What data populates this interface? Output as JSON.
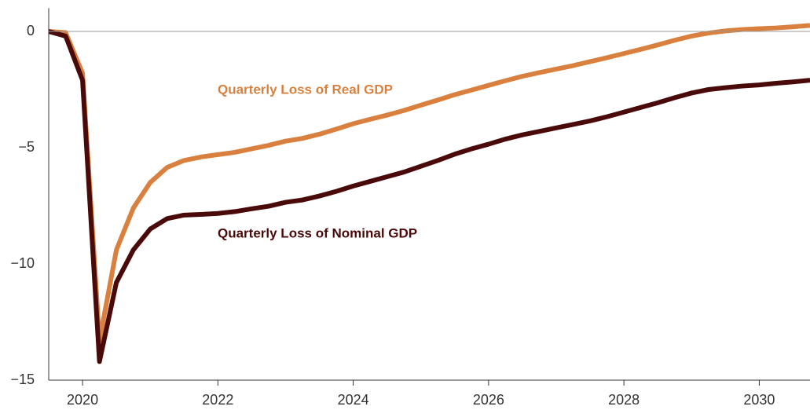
{
  "chart_data": {
    "type": "line",
    "x": [
      2019.5,
      2019.75,
      2020,
      2020.25,
      2020.5,
      2020.75,
      2021,
      2021.25,
      2021.5,
      2021.75,
      2022,
      2022.25,
      2022.5,
      2022.75,
      2023,
      2023.25,
      2023.5,
      2023.75,
      2024,
      2024.25,
      2024.5,
      2024.75,
      2025,
      2025.25,
      2025.5,
      2025.75,
      2026,
      2026.25,
      2026.5,
      2026.75,
      2027,
      2027.25,
      2027.5,
      2027.75,
      2028,
      2028.25,
      2028.5,
      2028.75,
      2029,
      2029.25,
      2029.5,
      2029.75,
      2030,
      2030.25,
      2030.5,
      2030.75
    ],
    "series": [
      {
        "name": "Quarterly Loss of Real GDP",
        "color": "#d9803f",
        "values": [
          0,
          -0.05,
          -1.8,
          -13.3,
          -9.4,
          -7.6,
          -6.5,
          -5.85,
          -5.55,
          -5.4,
          -5.3,
          -5.2,
          -5.05,
          -4.9,
          -4.72,
          -4.6,
          -4.42,
          -4.2,
          -3.97,
          -3.78,
          -3.6,
          -3.4,
          -3.17,
          -2.95,
          -2.72,
          -2.52,
          -2.32,
          -2.12,
          -1.93,
          -1.77,
          -1.62,
          -1.47,
          -1.3,
          -1.13,
          -0.95,
          -0.77,
          -0.58,
          -0.38,
          -0.2,
          -0.07,
          0.02,
          0.08,
          0.12,
          0.15,
          0.2,
          0.26
        ]
      },
      {
        "name": "Quarterly Loss of Nominal GDP",
        "color": "#4a0a0a",
        "values": [
          0,
          -0.2,
          -2.1,
          -14.2,
          -10.8,
          -9.4,
          -8.5,
          -8.05,
          -7.9,
          -7.87,
          -7.83,
          -7.75,
          -7.63,
          -7.52,
          -7.35,
          -7.25,
          -7.08,
          -6.88,
          -6.65,
          -6.45,
          -6.25,
          -6.05,
          -5.8,
          -5.55,
          -5.28,
          -5.05,
          -4.85,
          -4.63,
          -4.45,
          -4.3,
          -4.15,
          -4.0,
          -3.85,
          -3.67,
          -3.47,
          -3.27,
          -3.07,
          -2.85,
          -2.65,
          -2.5,
          -2.42,
          -2.35,
          -2.3,
          -2.23,
          -2.17,
          -2.1
        ]
      }
    ],
    "xlim": [
      2019.5,
      2030.75
    ],
    "xticks": [
      2020,
      2022,
      2024,
      2026,
      2028,
      2030
    ],
    "ylim": [
      -15,
      1
    ],
    "yticks": [
      0,
      {
        "value": -5,
        "label": "−5"
      },
      {
        "value": -10,
        "label": "−10"
      },
      {
        "value": -15,
        "label": "−15"
      }
    ]
  }
}
